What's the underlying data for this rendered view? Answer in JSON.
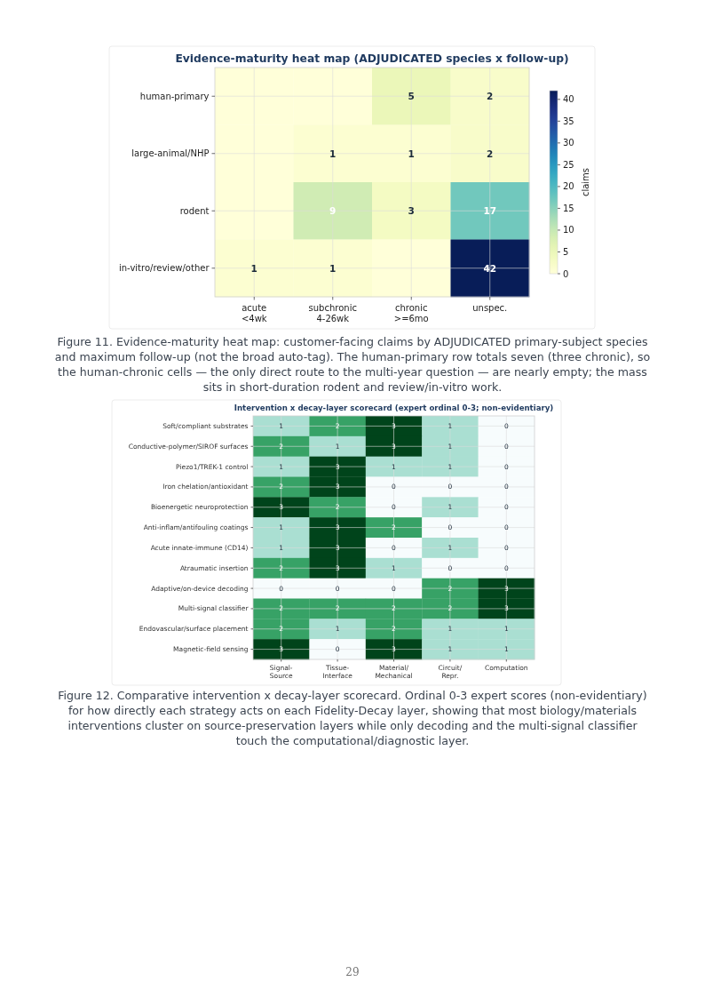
{
  "chart_data": [
    {
      "type": "heatmap",
      "title": "Evidence-maturity heat map (ADJUDICATED species x follow-up)",
      "categories": [
        "acute\n<4wk",
        "subchronic\n4-26wk",
        "chronic\n>=6mo",
        "unspec."
      ],
      "y_categories": [
        "human-primary",
        "large-animal/NHP",
        "rodent",
        "in-vitro/review/other"
      ],
      "cells": [
        [
          0,
          0,
          5,
          2
        ],
        [
          0,
          1,
          1,
          2
        ],
        [
          0,
          9,
          3,
          17
        ],
        [
          1,
          1,
          0,
          42
        ]
      ],
      "cell_labels": [
        [
          null,
          null,
          "5",
          "2"
        ],
        [
          null,
          "1",
          "1",
          "2"
        ],
        [
          null,
          "9",
          "3",
          "17"
        ],
        [
          "1",
          "1",
          null,
          "42"
        ]
      ],
      "clim": [
        0,
        42
      ],
      "cticks": [
        0,
        5,
        10,
        15,
        20,
        25,
        30,
        35,
        40
      ],
      "clabel": "claims",
      "grid": true,
      "annotations": [
        "Figure 11. Evidence-maturity heat map: customer-facing claims by ADJUDICATED primary-subject species and maximum follow-up (not the broad auto-tag). The human-primary row totals seven (three chronic), so the human-chronic cells — the only direct route to the multi-year question — are nearly empty; the mass sits in short-duration rodent and review/in-vitro work."
      ]
    },
    {
      "type": "heatmap",
      "title": "Intervention x decay-layer scorecard (expert ordinal 0-3; non-evidentiary)",
      "categories": [
        "Signal-\nSource",
        "Tissue-\nInterface",
        "Material/\nMechanical",
        "Circuit/\nRepr.",
        "Computation"
      ],
      "y_categories": [
        "Soft/compliant substrates",
        "Conductive-polymer/SIROF surfaces",
        "Piezo1/TREK-1 control",
        "Iron chelation/antioxidant",
        "Bioenergetic neuroprotection",
        "Anti-inflam/antifouling coatings",
        "Acute innate-immune (CD14)",
        "Atraumatic insertion",
        "Adaptive/on-device decoding",
        "Multi-signal classifier",
        "Endovascular/surface placement",
        "Magnetic-field sensing"
      ],
      "cells": [
        [
          1,
          2,
          3,
          1,
          0
        ],
        [
          2,
          1,
          3,
          1,
          0
        ],
        [
          1,
          3,
          1,
          1,
          0
        ],
        [
          2,
          3,
          0,
          0,
          0
        ],
        [
          3,
          2,
          0,
          1,
          0
        ],
        [
          1,
          3,
          2,
          0,
          0
        ],
        [
          1,
          3,
          0,
          1,
          0
        ],
        [
          2,
          3,
          1,
          0,
          0
        ],
        [
          0,
          0,
          0,
          2,
          3
        ],
        [
          2,
          2,
          2,
          2,
          3
        ],
        [
          2,
          1,
          2,
          1,
          1
        ],
        [
          3,
          0,
          3,
          1,
          1
        ]
      ],
      "data_labels": true,
      "grid": true,
      "annotations": [
        "Figure 12. Comparative intervention x decay-layer scorecard. Ordinal 0-3 expert scores (non-evidentiary) for how directly each strategy acts on each Fidelity-Decay layer, showing that most biology/materials interventions cluster on source-preservation layers while only decoding and the multi-signal classifier touch the computational/diagnostic layer.",
        "29"
      ]
    }
  ]
}
